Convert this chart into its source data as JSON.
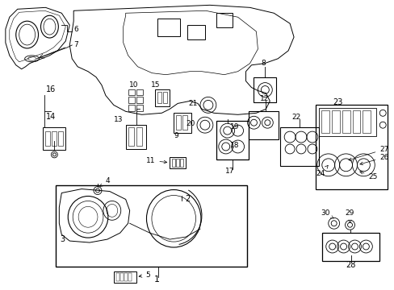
{
  "bg_color": "#ffffff",
  "line_color": "#000000",
  "fig_width": 4.89,
  "fig_height": 3.6,
  "dpi": 100,
  "fs": 6.5,
  "lw": 0.7
}
